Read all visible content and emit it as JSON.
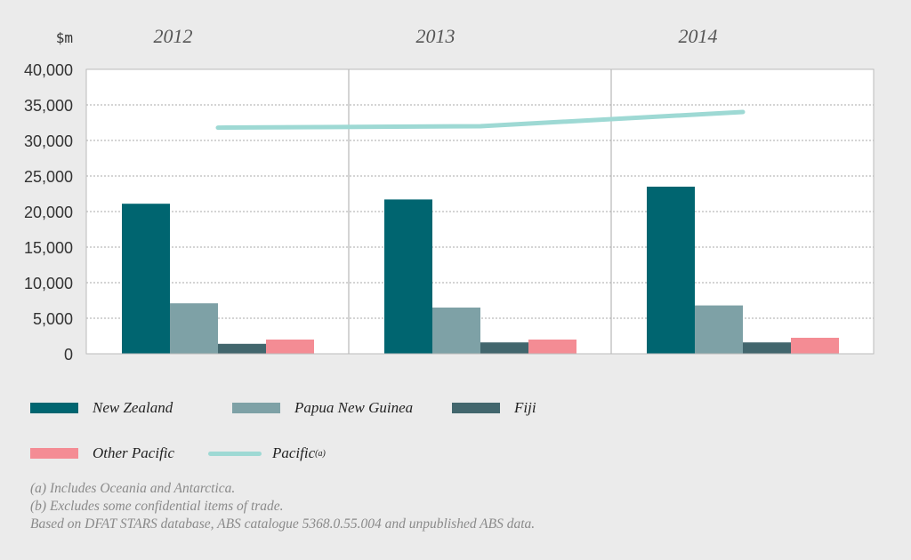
{
  "chart_data": {
    "type": "bar",
    "ylabel": "$m",
    "ylim": [
      0,
      40000
    ],
    "yticks": [
      "0",
      "5,000",
      "10,000",
      "15,000",
      "20,000",
      "25,000",
      "30,000",
      "35,000",
      "40,000"
    ],
    "ytick_values": [
      0,
      5000,
      10000,
      15000,
      20000,
      25000,
      30000,
      35000,
      40000
    ],
    "categories": [
      "2012",
      "2013",
      "2014"
    ],
    "grid": true,
    "legend_position": "bottom",
    "series": [
      {
        "name": "New Zealand",
        "type": "bar",
        "color": "#006570",
        "values": [
          21100,
          21700,
          23500
        ]
      },
      {
        "name": "Papua New Guinea",
        "type": "bar",
        "color": "#7ea1a6",
        "values": [
          7100,
          6500,
          6800
        ]
      },
      {
        "name": "Fiji",
        "type": "bar",
        "color": "#42666d",
        "values": [
          1400,
          1600,
          1600
        ]
      },
      {
        "name": "Other Pacific",
        "type": "bar",
        "color": "#f48c94",
        "values": [
          2000,
          2000,
          2250
        ]
      },
      {
        "name": "Pacific",
        "superscript": "(a)",
        "type": "line",
        "color": "#9ed9d4",
        "values": [
          31800,
          32000,
          34000
        ]
      }
    ]
  },
  "notes": [
    "(a) Includes Oceania and Antarctica.",
    "(b) Excludes some confidential items of trade.",
    "Based on DFAT STARS database, ABS catalogue 5368.0.55.004 and unpublished ABS data."
  ]
}
